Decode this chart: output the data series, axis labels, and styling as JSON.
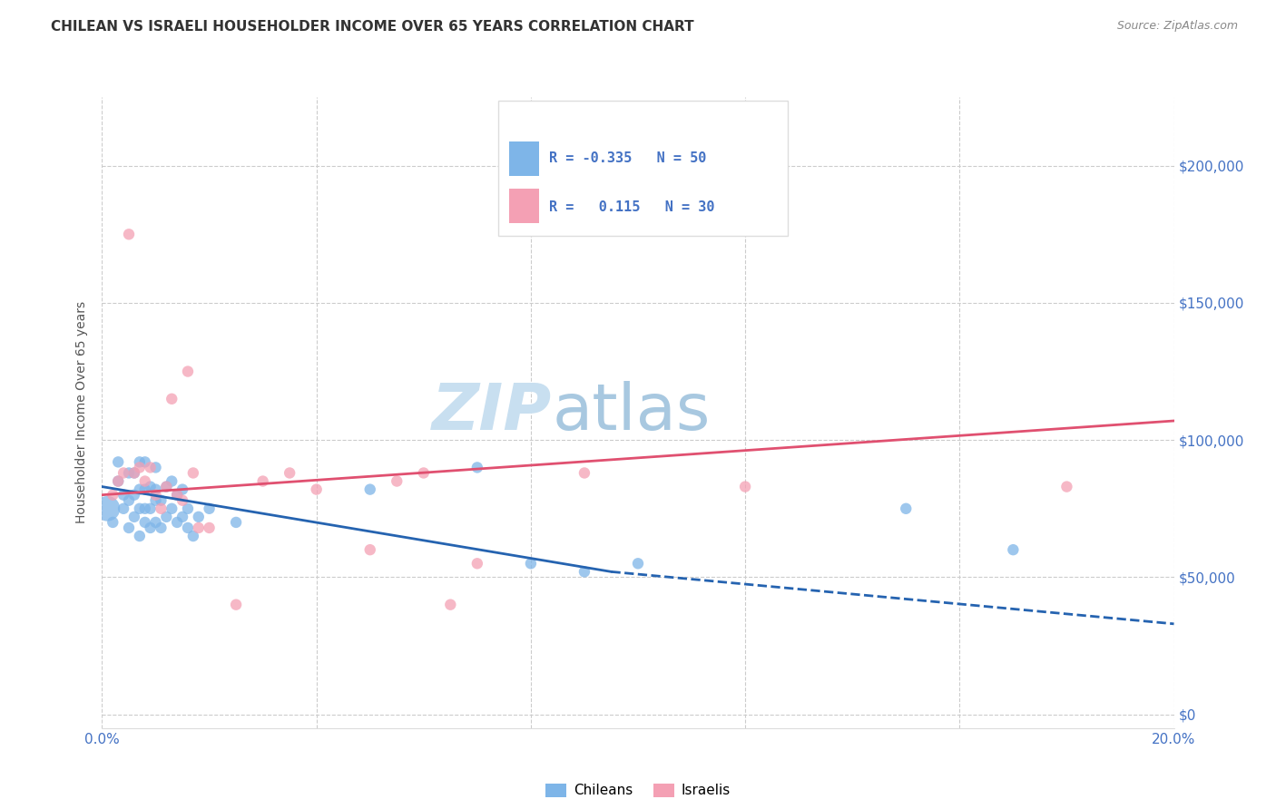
{
  "title": "CHILEAN VS ISRAELI HOUSEHOLDER INCOME OVER 65 YEARS CORRELATION CHART",
  "source": "Source: ZipAtlas.com",
  "ylabel": "Householder Income Over 65 years",
  "xlim": [
    0.0,
    0.2
  ],
  "ylim": [
    -5000,
    225000
  ],
  "yticks": [
    0,
    50000,
    100000,
    150000,
    200000
  ],
  "ytick_labels": [
    "$0",
    "$50,000",
    "$100,000",
    "$150,000",
    "$200,000"
  ],
  "xticks": [
    0.0,
    0.04,
    0.08,
    0.12,
    0.16,
    0.2
  ],
  "xtick_labels": [
    "0.0%",
    "",
    "",
    "",
    "",
    "20.0%"
  ],
  "watermark_zip": "ZIP",
  "watermark_atlas": "atlas",
  "color_chileans": "#7EB5E8",
  "color_israelis": "#F4A0B4",
  "color_trend_chileans": "#2563B0",
  "color_trend_israelis": "#E05070",
  "color_axis_labels": "#4472C4",
  "background_color": "#FFFFFF",
  "chilean_x": [
    0.001,
    0.002,
    0.003,
    0.003,
    0.004,
    0.004,
    0.005,
    0.005,
    0.005,
    0.006,
    0.006,
    0.006,
    0.007,
    0.007,
    0.007,
    0.007,
    0.008,
    0.008,
    0.008,
    0.008,
    0.009,
    0.009,
    0.009,
    0.01,
    0.01,
    0.01,
    0.01,
    0.011,
    0.011,
    0.012,
    0.012,
    0.013,
    0.013,
    0.014,
    0.014,
    0.015,
    0.015,
    0.016,
    0.016,
    0.017,
    0.018,
    0.02,
    0.025,
    0.05,
    0.07,
    0.08,
    0.09,
    0.1,
    0.15,
    0.17
  ],
  "chilean_y": [
    75000,
    70000,
    85000,
    92000,
    75000,
    80000,
    68000,
    78000,
    88000,
    72000,
    80000,
    88000,
    65000,
    75000,
    82000,
    92000,
    70000,
    75000,
    82000,
    92000,
    68000,
    75000,
    83000,
    70000,
    78000,
    82000,
    90000,
    68000,
    78000,
    72000,
    83000,
    75000,
    85000,
    70000,
    80000,
    72000,
    82000,
    68000,
    75000,
    65000,
    72000,
    75000,
    70000,
    82000,
    90000,
    55000,
    52000,
    55000,
    75000,
    60000
  ],
  "chilean_sizes": [
    400,
    80,
    80,
    80,
    80,
    80,
    80,
    80,
    80,
    80,
    80,
    80,
    80,
    80,
    80,
    80,
    80,
    80,
    80,
    80,
    80,
    80,
    80,
    80,
    80,
    80,
    80,
    80,
    80,
    80,
    80,
    80,
    80,
    80,
    80,
    80,
    80,
    80,
    80,
    80,
    80,
    80,
    80,
    80,
    80,
    80,
    80,
    80,
    80,
    80
  ],
  "israeli_x": [
    0.002,
    0.003,
    0.004,
    0.005,
    0.006,
    0.007,
    0.008,
    0.009,
    0.01,
    0.011,
    0.012,
    0.013,
    0.014,
    0.015,
    0.016,
    0.017,
    0.018,
    0.02,
    0.025,
    0.03,
    0.035,
    0.04,
    0.05,
    0.055,
    0.06,
    0.065,
    0.07,
    0.09,
    0.12,
    0.18
  ],
  "israeli_y": [
    80000,
    85000,
    88000,
    175000,
    88000,
    90000,
    85000,
    90000,
    80000,
    75000,
    83000,
    115000,
    80000,
    78000,
    125000,
    88000,
    68000,
    68000,
    40000,
    85000,
    88000,
    82000,
    60000,
    85000,
    88000,
    40000,
    55000,
    88000,
    83000,
    83000
  ],
  "israeli_sizes": [
    80,
    80,
    80,
    80,
    80,
    80,
    80,
    80,
    80,
    80,
    80,
    80,
    80,
    80,
    80,
    80,
    80,
    80,
    80,
    80,
    80,
    80,
    80,
    80,
    80,
    80,
    80,
    80,
    80,
    80
  ],
  "chilean_trend_x0": 0.0,
  "chilean_trend_y0": 83000,
  "chilean_trend_x1": 0.095,
  "chilean_trend_y1": 52000,
  "chilean_trend_x2": 0.2,
  "chilean_trend_y2": 33000,
  "israeli_trend_x0": 0.0,
  "israeli_trend_y0": 80000,
  "israeli_trend_x1": 0.2,
  "israeli_trend_y1": 107000,
  "title_fontsize": 11,
  "watermark_fontsize_zip": 52,
  "watermark_fontsize_atlas": 52,
  "watermark_color_zip": "#C8DFF0",
  "watermark_color_atlas": "#A8C8E0"
}
